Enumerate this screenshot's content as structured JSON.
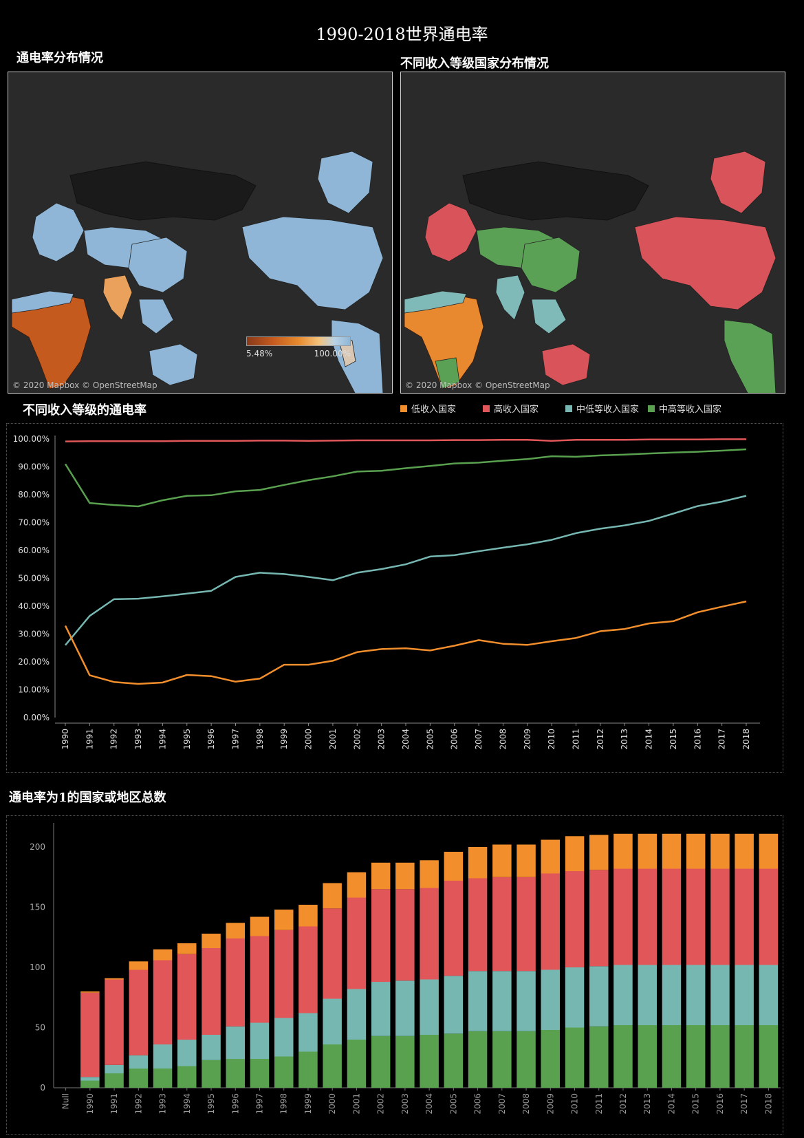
{
  "dashboard": {
    "title": "1990-2018世界通电率"
  },
  "sections": {
    "map_left_title": "通电率分布情况",
    "map_right_title": "不同收入等级国家分布情况",
    "line_title": "不同收入等级的通电率",
    "bar_title": "通电率为1的国家或地区总数"
  },
  "maps": {
    "credit": "© 2020 Mapbox © OpenStreetMap",
    "legend_min": "5.48%",
    "legend_max": "100.00%",
    "colors": {
      "land_base": "#8fb6d6",
      "low_access": "#c55a1e",
      "mid_access": "#e9a15b",
      "dark_region": "#1a1a1a",
      "high_income": "#d9545a",
      "lower_middle": "#7fbab8",
      "upper_middle": "#5aa055",
      "low_income": "#e8892f"
    }
  },
  "legend": {
    "items": [
      {
        "label": "低收入国家",
        "color": "#f28e2b"
      },
      {
        "label": "高收入国家",
        "color": "#e15759"
      },
      {
        "label": "中低等收入国家",
        "color": "#76b7b2"
      },
      {
        "label": "中高等收入国家",
        "color": "#59a14f"
      }
    ]
  },
  "chart_data": [
    {
      "type": "line",
      "title": "不同收入等级的通电率",
      "x": [
        1990,
        1991,
        1992,
        1993,
        1994,
        1995,
        1996,
        1997,
        1998,
        1999,
        2000,
        2001,
        2002,
        2003,
        2004,
        2005,
        2006,
        2007,
        2008,
        2009,
        2010,
        2011,
        2012,
        2013,
        2014,
        2015,
        2016,
        2017,
        2018
      ],
      "ylim": [
        0,
        100
      ],
      "y_ticks": [
        "0.00%",
        "10.00%",
        "20.00%",
        "30.00%",
        "40.00%",
        "50.00%",
        "60.00%",
        "70.00%",
        "80.00%",
        "90.00%",
        "100.00%"
      ],
      "series": [
        {
          "name": "高收入国家",
          "color": "#e15759",
          "values": [
            99.1,
            99.2,
            99.2,
            99.2,
            99.2,
            99.3,
            99.3,
            99.3,
            99.4,
            99.4,
            99.3,
            99.4,
            99.5,
            99.5,
            99.5,
            99.5,
            99.6,
            99.6,
            99.7,
            99.7,
            99.3,
            99.7,
            99.7,
            99.7,
            99.8,
            99.8,
            99.8,
            99.9,
            99.9
          ]
        },
        {
          "name": "中高等收入国家",
          "color": "#59a14f",
          "values": [
            91.0,
            77.0,
            76.3,
            75.8,
            78.0,
            79.6,
            79.8,
            81.2,
            81.7,
            83.5,
            85.2,
            86.6,
            88.3,
            88.6,
            89.5,
            90.3,
            91.2,
            91.5,
            92.2,
            92.8,
            93.8,
            93.6,
            94.1,
            94.4,
            94.8,
            95.1,
            95.4,
            95.8,
            96.3
          ]
        },
        {
          "name": "中低等收入国家",
          "color": "#76b7b2",
          "values": [
            26.0,
            36.5,
            42.5,
            42.7,
            43.5,
            44.5,
            45.5,
            50.5,
            52.0,
            51.5,
            50.5,
            49.3,
            52.0,
            53.3,
            55.0,
            57.8,
            58.3,
            59.7,
            61.0,
            62.2,
            63.8,
            66.2,
            67.8,
            69.0,
            70.6,
            73.2,
            75.9,
            77.5,
            79.6
          ]
        },
        {
          "name": "低收入国家",
          "color": "#f28e2b",
          "values": [
            33.0,
            15.2,
            12.8,
            12.1,
            12.6,
            15.3,
            14.9,
            12.9,
            14.0,
            19.0,
            19.0,
            20.4,
            23.5,
            24.6,
            24.9,
            24.1,
            25.8,
            27.8,
            26.5,
            26.1,
            27.4,
            28.6,
            31.0,
            31.8,
            33.8,
            34.6,
            37.8,
            39.8,
            41.7
          ]
        }
      ]
    },
    {
      "type": "bar",
      "stacked": true,
      "title": "通电率为1的国家或地区总数",
      "categories": [
        "Null",
        "1990",
        "1991",
        "1992",
        "1993",
        "1994",
        "1995",
        "1996",
        "1997",
        "1998",
        "1999",
        "2000",
        "2001",
        "2002",
        "2003",
        "2004",
        "2005",
        "2006",
        "2007",
        "2008",
        "2009",
        "2010",
        "2011",
        "2012",
        "2013",
        "2014",
        "2015",
        "2016",
        "2017",
        "2018"
      ],
      "ylim": [
        0,
        220
      ],
      "y_ticks": [
        0,
        50,
        100,
        150,
        200
      ],
      "series": [
        {
          "name": "中高等收入国家",
          "color": "#59a14f",
          "values": [
            0,
            6,
            12,
            16,
            16,
            18,
            23,
            24,
            24,
            26,
            30,
            36,
            40,
            43,
            43,
            44,
            45,
            47,
            47,
            47,
            48,
            50,
            51,
            52,
            52,
            52,
            52,
            52,
            52,
            52
          ]
        },
        {
          "name": "中低等收入国家",
          "color": "#76b7b2",
          "values": [
            0,
            3,
            7,
            11,
            20,
            22,
            21,
            27,
            30,
            32,
            32,
            38,
            42,
            45,
            46,
            46,
            48,
            50,
            50,
            50,
            50,
            50,
            50,
            50,
            50,
            50,
            50,
            50,
            50,
            50
          ]
        },
        {
          "name": "高收入国家",
          "color": "#e15759",
          "values": [
            0,
            70,
            71,
            71,
            70,
            71,
            72,
            73,
            72,
            73,
            72,
            75,
            76,
            77,
            76,
            76,
            79,
            77,
            78,
            78,
            80,
            80,
            80,
            80,
            80,
            80,
            80,
            80,
            80,
            80
          ]
        },
        {
          "name": "低收入国家",
          "color": "#f28e2b",
          "values": [
            0,
            1,
            1,
            7,
            9,
            9,
            12,
            13,
            16,
            17,
            18,
            21,
            21,
            22,
            22,
            23,
            24,
            26,
            27,
            27,
            28,
            29,
            29,
            29,
            29,
            29,
            29,
            29,
            29,
            29
          ]
        }
      ]
    }
  ]
}
